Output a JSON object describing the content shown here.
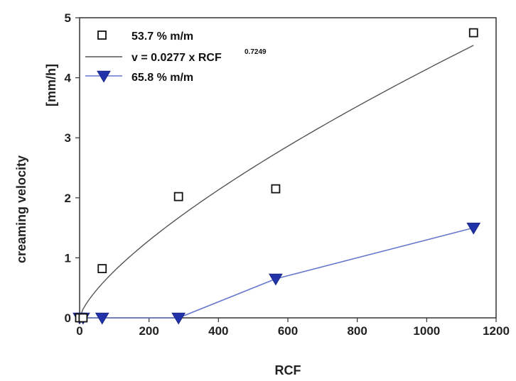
{
  "chart_data": {
    "type": "scatter",
    "xlabel": "RCF",
    "ylabel": "creaming velocity",
    "ylabel_unit": "[mm/h]",
    "xlim": [
      0,
      1200
    ],
    "ylim": [
      0,
      5
    ],
    "xticks": [
      0,
      200,
      400,
      600,
      800,
      1000,
      1200
    ],
    "yticks": [
      0,
      1,
      2,
      3,
      4,
      5
    ],
    "grid": false,
    "legend_position": "top-left",
    "series": [
      {
        "name": "53.7 % m/m",
        "type": "scatter",
        "marker": "open-square",
        "color": "#111111",
        "x": [
          0,
          10,
          65,
          285,
          565,
          1135
        ],
        "y": [
          0,
          0,
          0.82,
          2.02,
          2.15,
          4.75
        ]
      },
      {
        "name": "v = 0.0277 x RCF",
        "name_superscript": "0.7249",
        "type": "fit",
        "color": "#555555",
        "coefficient": 0.0277,
        "exponent": 0.7249,
        "x_range": [
          0,
          1135
        ]
      },
      {
        "name": "65.8 % m/m",
        "type": "line",
        "marker": "filled-triangle-down",
        "color": "#2233aa",
        "x": [
          0,
          10,
          65,
          285,
          565,
          1135
        ],
        "y": [
          0,
          0,
          0,
          0,
          0.65,
          1.5
        ]
      }
    ]
  }
}
